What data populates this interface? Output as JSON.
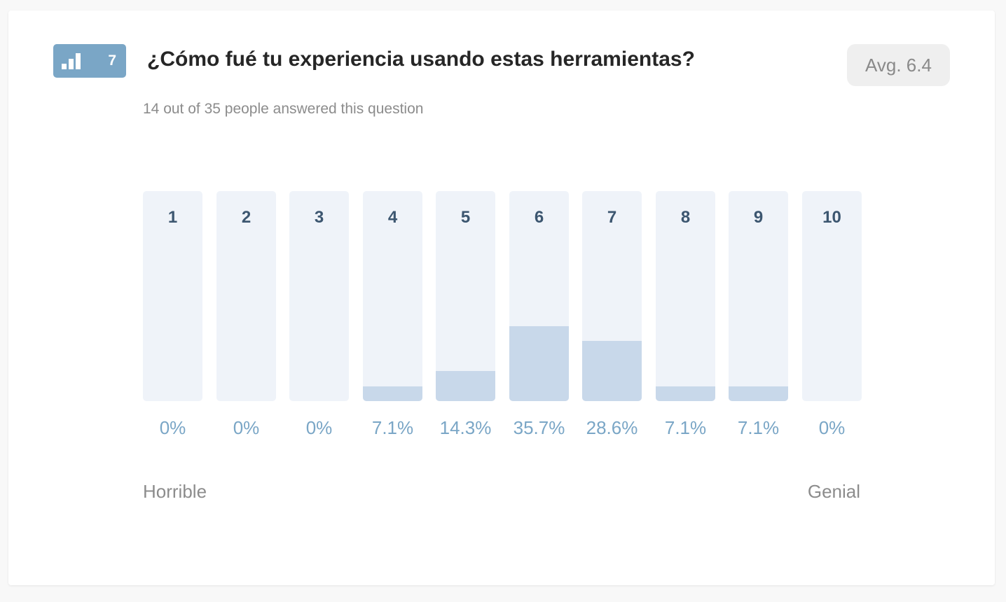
{
  "question": {
    "number": "7",
    "title": "¿Cómo fué tu experiencia usando estas herramientas?",
    "average_label": "Avg. 6.4",
    "responses_text": "14 out of 35 people answered this question",
    "badge_icon": "bar-chart-icon",
    "badge_color": "#7aa6c6"
  },
  "scale": {
    "low_label": "Horrible",
    "high_label": "Genial"
  },
  "chart_data": {
    "type": "bar",
    "categories": [
      "1",
      "2",
      "3",
      "4",
      "5",
      "6",
      "7",
      "8",
      "9",
      "10"
    ],
    "values": [
      0,
      0,
      0,
      7.1,
      14.3,
      35.7,
      28.6,
      7.1,
      7.1,
      0
    ],
    "labels": [
      "0%",
      "0%",
      "0%",
      "7.1%",
      "14.3%",
      "35.7%",
      "28.6%",
      "7.1%",
      "7.1%",
      "0%"
    ],
    "ylim": [
      0,
      100
    ],
    "colors": {
      "track": "#eff3f9",
      "fill": "#c8d8ea",
      "percent_text": "#7aa6c6"
    }
  }
}
